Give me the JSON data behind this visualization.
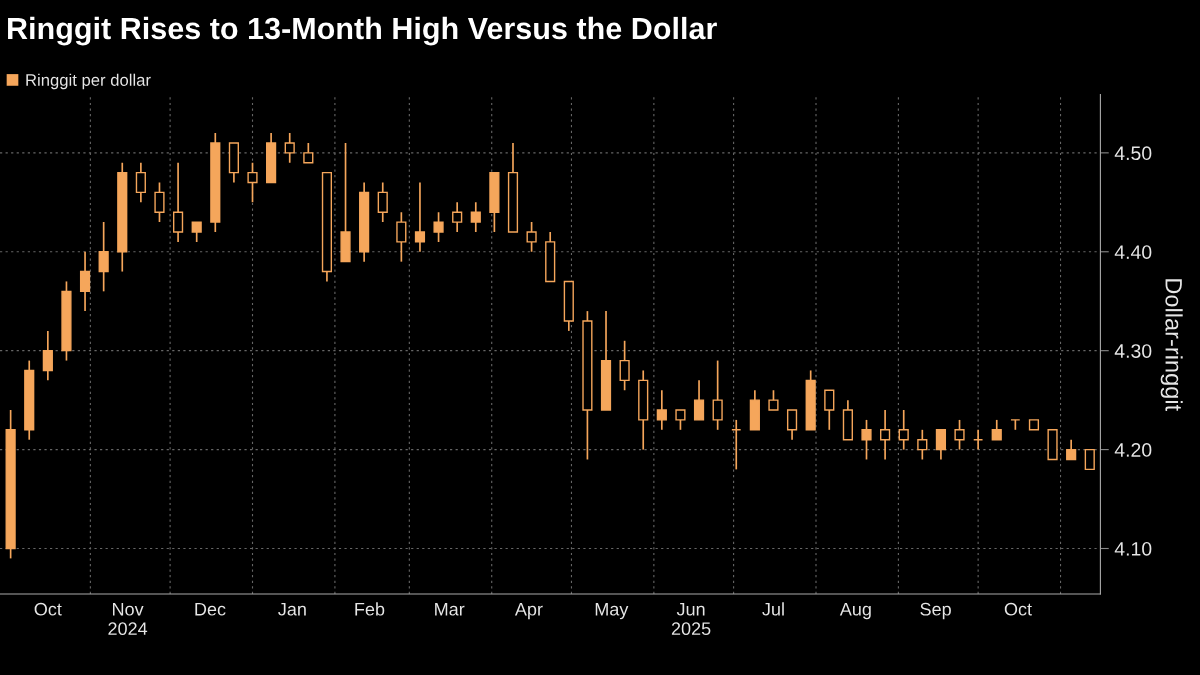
{
  "chart_data": {
    "type": "candlestick",
    "title": "Ringgit Rises to 13-Month High Versus the Dollar",
    "ylabel": "Dollar-ringgit",
    "x": [
      "2024-10-02",
      "2024-10-09",
      "2024-10-16",
      "2024-10-23",
      "2024-10-30",
      "2024-11-06",
      "2024-11-13",
      "2024-11-20",
      "2024-11-27",
      "2024-12-04",
      "2024-12-11",
      "2024-12-18",
      "2024-12-25",
      "2025-01-01",
      "2025-01-08",
      "2025-01-15",
      "2025-01-22",
      "2025-01-29",
      "2025-02-05",
      "2025-02-12",
      "2025-02-19",
      "2025-02-26",
      "2025-03-05",
      "2025-03-12",
      "2025-03-19",
      "2025-03-26",
      "2025-04-02",
      "2025-04-09",
      "2025-04-16",
      "2025-04-23",
      "2025-04-30",
      "2025-05-07",
      "2025-05-14",
      "2025-05-21",
      "2025-05-28",
      "2025-06-04",
      "2025-06-11",
      "2025-06-18",
      "2025-06-25",
      "2025-07-02",
      "2025-07-09",
      "2025-07-16",
      "2025-07-23",
      "2025-07-30",
      "2025-08-06",
      "2025-08-13",
      "2025-08-20",
      "2025-08-27",
      "2025-09-03",
      "2025-09-10",
      "2025-09-17",
      "2025-09-24",
      "2025-10-01",
      "2025-10-08",
      "2025-10-15",
      "2025-10-22",
      "2025-10-29",
      "2025-11-05",
      "2025-11-12"
    ],
    "series": [
      {
        "name": "Ringgit per dollar",
        "color": "#f5a65b",
        "ohlc": [
          [
            4.1,
            4.24,
            4.09,
            4.22
          ],
          [
            4.22,
            4.29,
            4.21,
            4.28
          ],
          [
            4.28,
            4.32,
            4.27,
            4.3
          ],
          [
            4.3,
            4.37,
            4.29,
            4.36
          ],
          [
            4.36,
            4.4,
            4.34,
            4.38
          ],
          [
            4.38,
            4.43,
            4.36,
            4.4
          ],
          [
            4.4,
            4.49,
            4.38,
            4.48
          ],
          [
            4.48,
            4.49,
            4.45,
            4.46
          ],
          [
            4.46,
            4.47,
            4.43,
            4.44
          ],
          [
            4.44,
            4.49,
            4.41,
            4.42
          ],
          [
            4.42,
            4.43,
            4.41,
            4.43
          ],
          [
            4.43,
            4.52,
            4.42,
            4.51
          ],
          [
            4.51,
            4.51,
            4.47,
            4.48
          ],
          [
            4.48,
            4.49,
            4.45,
            4.47
          ],
          [
            4.47,
            4.52,
            4.47,
            4.51
          ],
          [
            4.51,
            4.52,
            4.49,
            4.5
          ],
          [
            4.5,
            4.51,
            4.49,
            4.49
          ],
          [
            4.48,
            4.48,
            4.37,
            4.38
          ],
          [
            4.39,
            4.51,
            4.39,
            4.42
          ],
          [
            4.4,
            4.47,
            4.39,
            4.46
          ],
          [
            4.46,
            4.47,
            4.43,
            4.44
          ],
          [
            4.43,
            4.44,
            4.39,
            4.41
          ],
          [
            4.41,
            4.47,
            4.4,
            4.42
          ],
          [
            4.42,
            4.44,
            4.41,
            4.43
          ],
          [
            4.44,
            4.45,
            4.42,
            4.43
          ],
          [
            4.43,
            4.45,
            4.42,
            4.44
          ],
          [
            4.44,
            4.48,
            4.42,
            4.48
          ],
          [
            4.48,
            4.51,
            4.42,
            4.42
          ],
          [
            4.42,
            4.43,
            4.4,
            4.41
          ],
          [
            4.41,
            4.42,
            4.37,
            4.37
          ],
          [
            4.37,
            4.37,
            4.32,
            4.33
          ],
          [
            4.33,
            4.34,
            4.19,
            4.24
          ],
          [
            4.24,
            4.34,
            4.24,
            4.29
          ],
          [
            4.29,
            4.31,
            4.26,
            4.27
          ],
          [
            4.27,
            4.28,
            4.2,
            4.23
          ],
          [
            4.23,
            4.26,
            4.22,
            4.24
          ],
          [
            4.24,
            4.24,
            4.22,
            4.23
          ],
          [
            4.23,
            4.27,
            4.23,
            4.25
          ],
          [
            4.25,
            4.29,
            4.22,
            4.23
          ],
          [
            4.22,
            4.23,
            4.18,
            4.22
          ],
          [
            4.22,
            4.26,
            4.22,
            4.25
          ],
          [
            4.25,
            4.26,
            4.24,
            4.24
          ],
          [
            4.24,
            4.24,
            4.21,
            4.22
          ],
          [
            4.22,
            4.28,
            4.22,
            4.27
          ],
          [
            4.26,
            4.26,
            4.22,
            4.24
          ],
          [
            4.24,
            4.25,
            4.21,
            4.21
          ],
          [
            4.21,
            4.23,
            4.19,
            4.22
          ],
          [
            4.22,
            4.24,
            4.19,
            4.21
          ],
          [
            4.22,
            4.24,
            4.2,
            4.21
          ],
          [
            4.21,
            4.22,
            4.19,
            4.2
          ],
          [
            4.2,
            4.22,
            4.19,
            4.22
          ],
          [
            4.22,
            4.23,
            4.2,
            4.21
          ],
          [
            4.21,
            4.22,
            4.2,
            4.21
          ],
          [
            4.21,
            4.23,
            4.21,
            4.22
          ],
          [
            4.23,
            4.23,
            4.22,
            4.23
          ],
          [
            4.23,
            4.23,
            4.22,
            4.22
          ],
          [
            4.22,
            4.22,
            4.19,
            4.19
          ],
          [
            4.19,
            4.21,
            4.19,
            4.2
          ],
          [
            4.2,
            4.2,
            4.18,
            4.18
          ]
        ]
      }
    ],
    "xlim": [
      "2024-09-28",
      "2025-11-16"
    ],
    "xticks": [
      {
        "value": "2024-10-16",
        "label": "Oct"
      },
      {
        "value": "2024-11-01",
        "label": null
      },
      {
        "value": "2024-11-15",
        "label": "Nov\n2024"
      },
      {
        "value": "2024-12-01",
        "label": null
      },
      {
        "value": "2024-12-16",
        "label": "Dec"
      },
      {
        "value": "2025-01-01",
        "label": null
      },
      {
        "value": "2025-01-16",
        "label": "Jan"
      },
      {
        "value": "2025-02-01",
        "label": null
      },
      {
        "value": "2025-02-14",
        "label": "Feb"
      },
      {
        "value": "2025-03-01",
        "label": null
      },
      {
        "value": "2025-03-16",
        "label": "Mar"
      },
      {
        "value": "2025-04-01",
        "label": null
      },
      {
        "value": "2025-04-15",
        "label": "Apr"
      },
      {
        "value": "2025-05-01",
        "label": null
      },
      {
        "value": "2025-05-16",
        "label": "May"
      },
      {
        "value": "2025-06-01",
        "label": null
      },
      {
        "value": "2025-06-15",
        "label": "Jun\n2025"
      },
      {
        "value": "2025-07-01",
        "label": null
      },
      {
        "value": "2025-07-16",
        "label": "Jul"
      },
      {
        "value": "2025-08-01",
        "label": null
      },
      {
        "value": "2025-08-16",
        "label": "Aug"
      },
      {
        "value": "2025-09-01",
        "label": null
      },
      {
        "value": "2025-09-15",
        "label": "Sep"
      },
      {
        "value": "2025-10-01",
        "label": null
      },
      {
        "value": "2025-10-16",
        "label": "Oct"
      },
      {
        "value": "2025-11-01",
        "label": null
      }
    ],
    "ylim": [
      4.054,
      4.559
    ],
    "yticks": [
      {
        "value": 4.1,
        "label": "4.10"
      },
      {
        "value": 4.2,
        "label": "4.20"
      },
      {
        "value": 4.3,
        "label": "4.30"
      },
      {
        "value": 4.4,
        "label": "4.40"
      },
      {
        "value": 4.5,
        "label": "4.50"
      }
    ],
    "grid": true,
    "legend": "top left"
  }
}
